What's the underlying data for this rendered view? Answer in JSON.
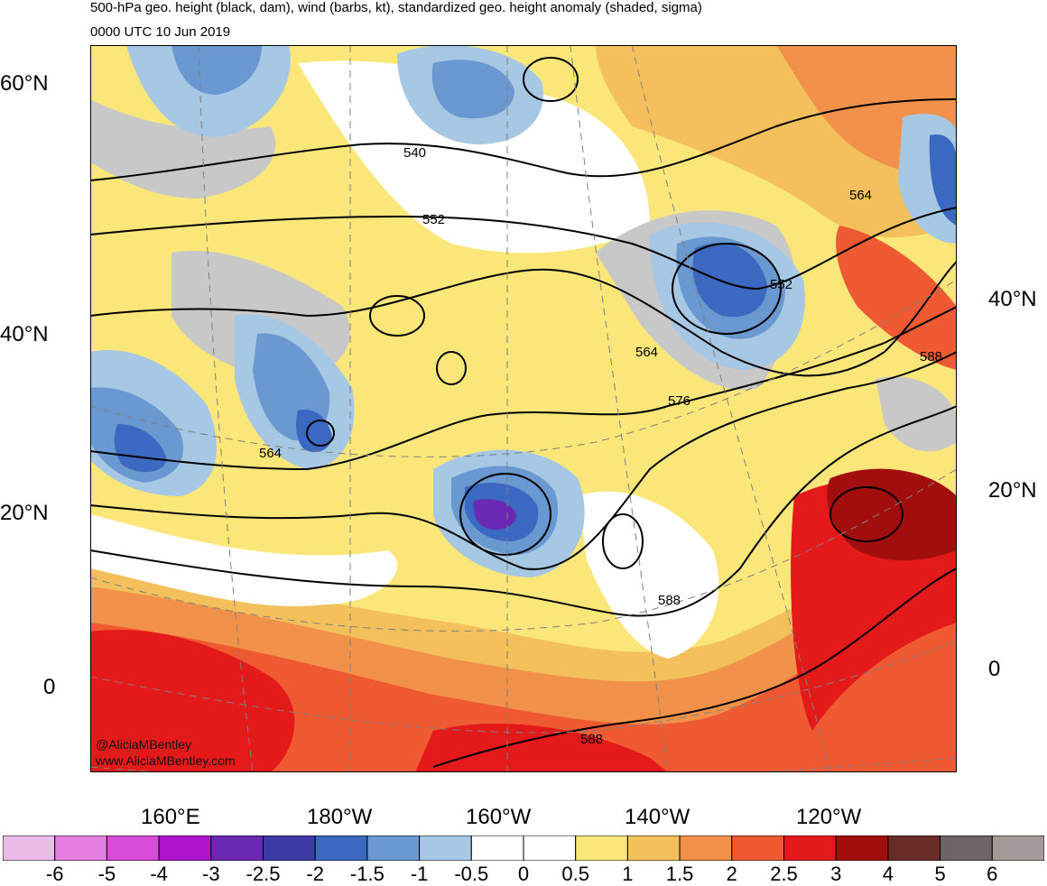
{
  "title": {
    "line1": "500-hPa geo. height (black, dam), wind (barbs, kt), standardized geo. height anomaly (shaded, sigma)",
    "line2": "0000 UTC 10 Jun 2019"
  },
  "map": {
    "lat_labels_left": [
      "60°N",
      "40°N",
      "20°N",
      "0"
    ],
    "lat_labels_right": [
      "40°N",
      "20°N",
      "0"
    ],
    "lon_labels": [
      "160°E",
      "180°W",
      "160°W",
      "140°W",
      "120°W"
    ],
    "contour_labels": [
      "540",
      "552",
      "564",
      "552",
      "564",
      "576",
      "564",
      "588",
      "588",
      "588"
    ],
    "credit_line1": "@AliciaMBentley",
    "credit_line2": "www.AliciaMBentley.com"
  },
  "colorbar": {
    "labels": [
      "-6",
      "-5",
      "-4",
      "-3",
      "-2.5",
      "-2",
      "-1.5",
      "-1",
      "-0.5",
      "0",
      "0.5",
      "1",
      "1.5",
      "2",
      "2.5",
      "3",
      "4",
      "5",
      "6"
    ],
    "colors": [
      "#ecbce8",
      "#e47fe0",
      "#d84ad8",
      "#ae14cc",
      "#6a29b4",
      "#3d3aa6",
      "#3b68c0",
      "#6a98d0",
      "#a6c8e4",
      "#ffffff",
      "#ffffff",
      "#fbe67a",
      "#f3c05c",
      "#f2924a",
      "#ef5a32",
      "#e41a1a",
      "#a20e0e",
      "#6a2a28",
      "#6e6666",
      "#a49a9a"
    ]
  }
}
